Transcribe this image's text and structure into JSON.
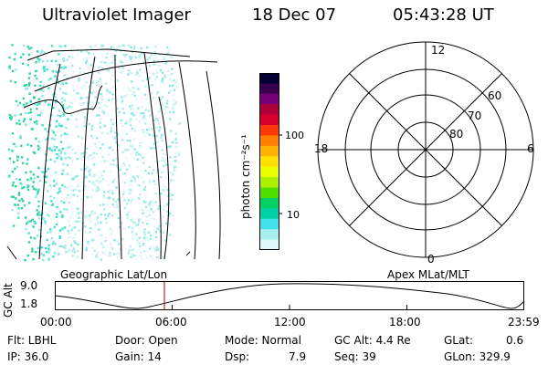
{
  "header": {
    "instrument": "Ultraviolet Imager",
    "date": "18 Dec 07",
    "time": "05:43:28 UT"
  },
  "colorbar": {
    "unit_label": "photon cm⁻²s⁻¹",
    "tick_100": "100",
    "tick_10": "10",
    "colors": [
      "#000033",
      "#3a0050",
      "#7a007a",
      "#b0003a",
      "#d8002a",
      "#ff3a00",
      "#ff8000",
      "#ffb000",
      "#ffe000",
      "#e8ff00",
      "#a8f000",
      "#50e000",
      "#00d060",
      "#00d0a8",
      "#40e0e8",
      "#a8f0f0",
      "#e0f8f8"
    ]
  },
  "polar_plot": {
    "label_top": "12",
    "label_left": "18",
    "label_right": "6",
    "label_bottom": "0",
    "ring_60": "60",
    "ring_70": "70",
    "ring_80": "80"
  },
  "projection_labels": {
    "left": "Geographic Lat/Lon",
    "right": "Apex MLat/MLT"
  },
  "altitude_plot": {
    "ylabel": "GC Alt",
    "ytick_high": "9.0",
    "ytick_low": "1.8",
    "xticks": [
      "00:00",
      "06:00",
      "12:00",
      "18:00",
      "23:59"
    ]
  },
  "info": {
    "filter": "Flt: LBHL",
    "door": "Door: Open",
    "mode": "Mode: Normal",
    "gc_alt": "GC Alt: 4.4 Re",
    "glat_label": "GLat:",
    "glat_value": "0.6",
    "ip": "IP: 36.0",
    "gain": "Gain: 14",
    "dsp_label": "Dsp:",
    "dsp_value": "7.9",
    "seq": "Seq: 39",
    "glon": "GLon: 329.9"
  }
}
